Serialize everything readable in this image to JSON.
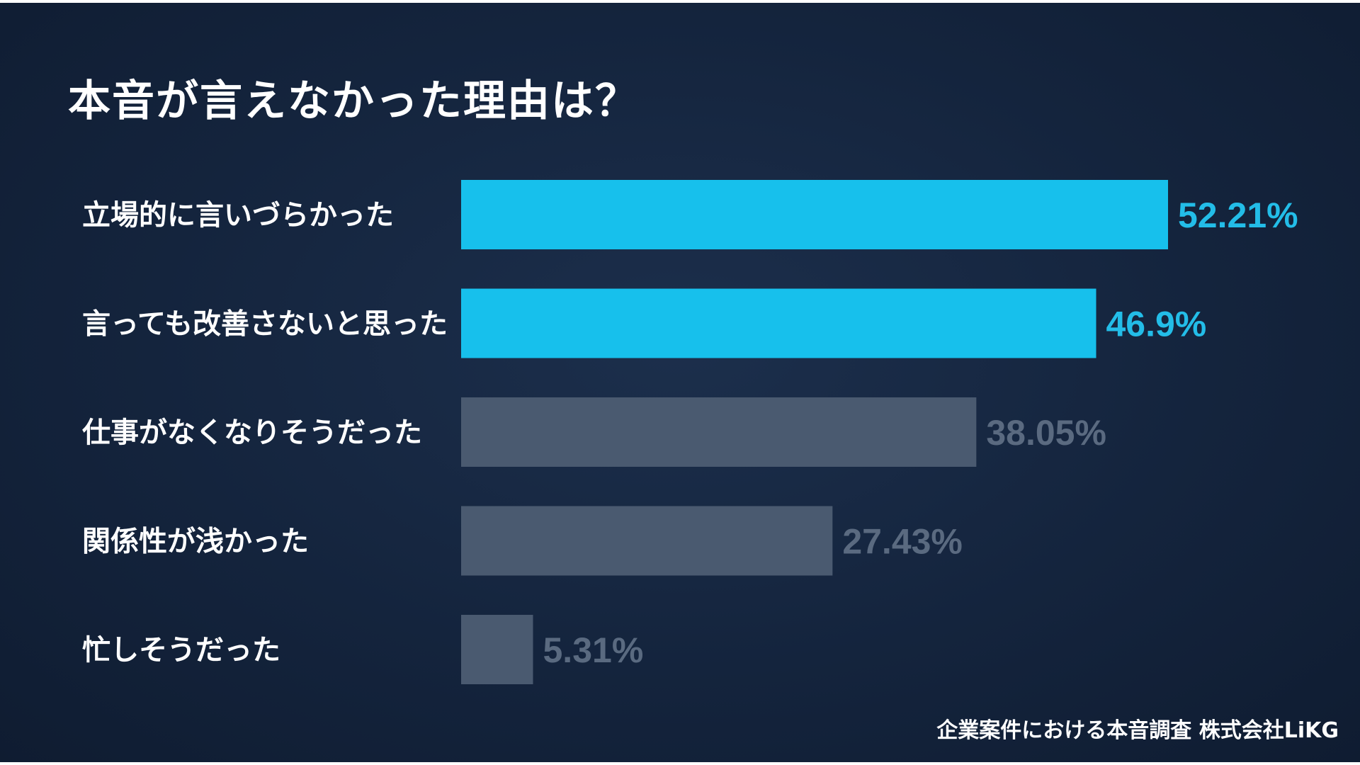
{
  "chart_data": {
    "type": "bar",
    "orientation": "horizontal",
    "title": "本音が言えなかった理由は？",
    "categories": [
      "立場的に言いづらかった",
      "言っても改善さないと思った",
      "仕事がなくなりそうだった",
      "関係性が浅かった",
      "忙しそうだった"
    ],
    "values": [
      52.21,
      46.9,
      38.05,
      27.43,
      5.31
    ],
    "value_labels": [
      "52.21%",
      "46.9%",
      "38.05%",
      "27.43%",
      "5.31%"
    ],
    "highlight": [
      true,
      true,
      false,
      false,
      false
    ],
    "xlim": [
      0,
      52.21
    ],
    "xlabel": "",
    "ylabel": "",
    "grid": false,
    "legend": "none"
  },
  "colors": {
    "highlight_bar": "#17c0ec",
    "muted_bar": "#4a5a70",
    "highlight_text": "#23bde8",
    "muted_text": "#5a6a80"
  },
  "source": "企業案件における本音調査  株式会社LiKG"
}
